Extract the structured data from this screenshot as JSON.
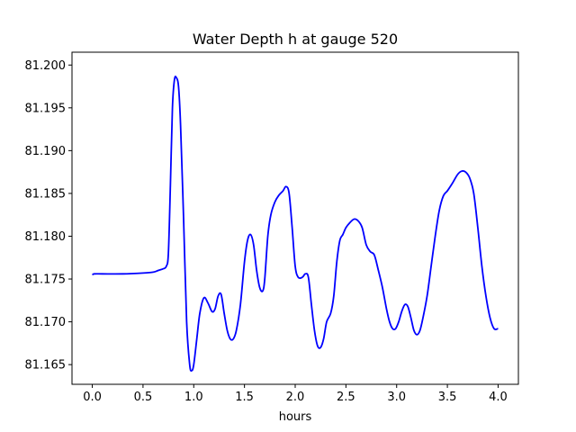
{
  "chart_data": {
    "type": "line",
    "title": "Water Depth h at gauge 520",
    "xlabel": "hours",
    "ylabel": "",
    "xlim": [
      -0.2,
      4.2
    ],
    "ylim": [
      81.1627,
      81.2015
    ],
    "xticks": [
      0.0,
      0.5,
      1.0,
      1.5,
      2.0,
      2.5,
      3.0,
      3.5,
      4.0
    ],
    "xtick_labels": [
      "0.0",
      "0.5",
      "1.0",
      "1.5",
      "2.0",
      "2.5",
      "3.0",
      "3.5",
      "4.0"
    ],
    "yticks": [
      81.165,
      81.17,
      81.175,
      81.18,
      81.185,
      81.19,
      81.195,
      81.2
    ],
    "ytick_labels": [
      "81.165",
      "81.170",
      "81.175",
      "81.180",
      "81.185",
      "81.190",
      "81.195",
      "81.200"
    ],
    "grid": false,
    "series": [
      {
        "color": "#0000ff",
        "x": [
          0.0,
          0.02,
          0.1,
          0.3,
          0.5,
          0.6,
          0.65,
          0.7,
          0.73,
          0.75,
          0.77,
          0.79,
          0.81,
          0.83,
          0.85,
          0.87,
          0.9,
          0.93,
          0.96,
          0.98,
          1.0,
          1.03,
          1.06,
          1.1,
          1.14,
          1.18,
          1.21,
          1.24,
          1.27,
          1.3,
          1.33,
          1.36,
          1.39,
          1.42,
          1.46,
          1.5,
          1.53,
          1.56,
          1.59,
          1.62,
          1.65,
          1.68,
          1.7,
          1.73,
          1.76,
          1.8,
          1.84,
          1.88,
          1.91,
          1.94,
          1.97,
          2.0,
          2.03,
          2.07,
          2.1,
          2.13,
          2.16,
          2.19,
          2.22,
          2.25,
          2.28,
          2.31,
          2.35,
          2.38,
          2.41,
          2.44,
          2.47,
          2.5,
          2.54,
          2.58,
          2.62,
          2.66,
          2.7,
          2.74,
          2.78,
          2.82,
          2.86,
          2.9,
          2.93,
          2.96,
          2.99,
          3.02,
          3.05,
          3.08,
          3.11,
          3.14,
          3.17,
          3.2,
          3.23,
          3.26,
          3.3,
          3.34,
          3.38,
          3.42,
          3.46,
          3.5,
          3.55,
          3.6,
          3.64,
          3.68,
          3.72,
          3.76,
          3.8,
          3.84,
          3.88,
          3.92,
          3.96,
          4.0
        ],
        "values": [
          81.1755,
          81.1756,
          81.1756,
          81.1756,
          81.1757,
          81.1758,
          81.176,
          81.1762,
          81.1765,
          81.178,
          81.186,
          81.195,
          81.1983,
          81.1985,
          81.1975,
          81.193,
          81.182,
          81.17,
          81.165,
          81.1643,
          81.165,
          81.168,
          81.171,
          81.1728,
          81.1722,
          81.1712,
          81.1715,
          81.173,
          81.1732,
          81.171,
          81.169,
          81.168,
          81.168,
          81.169,
          81.172,
          81.177,
          81.1795,
          81.1802,
          81.179,
          81.176,
          81.174,
          81.1736,
          81.175,
          81.18,
          81.1825,
          81.184,
          81.1848,
          81.1853,
          81.1858,
          81.185,
          81.181,
          81.1765,
          81.1752,
          81.1752,
          81.1756,
          81.1752,
          81.172,
          81.169,
          81.1672,
          81.167,
          81.168,
          81.17,
          81.171,
          81.173,
          81.177,
          81.1795,
          81.1802,
          81.181,
          81.1816,
          81.182,
          81.1818,
          81.181,
          81.179,
          81.1782,
          81.1778,
          81.176,
          81.174,
          81.1715,
          81.17,
          81.1692,
          81.1692,
          81.17,
          81.1712,
          81.172,
          81.1718,
          81.1705,
          81.169,
          81.1685,
          81.169,
          81.1705,
          81.173,
          81.1765,
          81.18,
          81.183,
          81.1847,
          81.1853,
          81.1862,
          81.1872,
          81.1876,
          81.1875,
          81.1868,
          81.185,
          81.181,
          81.1765,
          81.173,
          81.1705,
          81.1692,
          81.1692
        ]
      }
    ]
  }
}
